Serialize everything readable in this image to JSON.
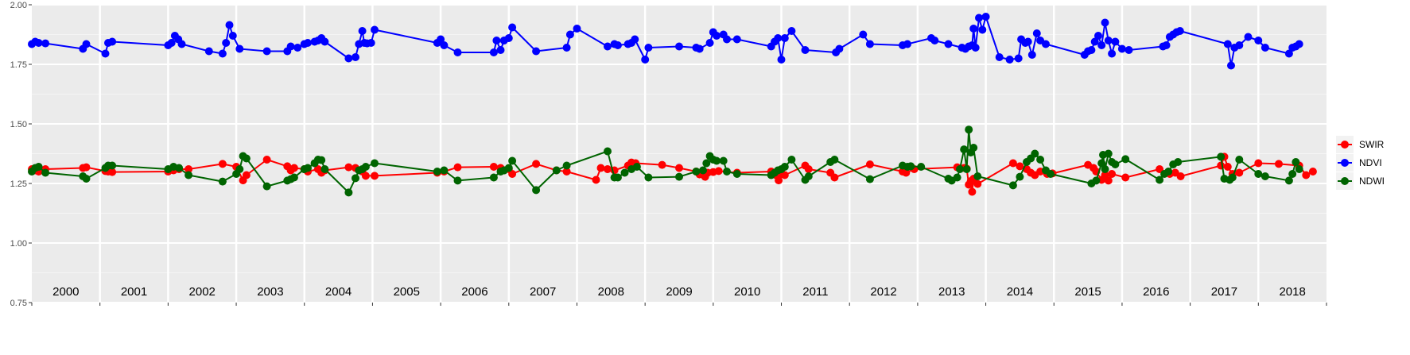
{
  "chart_data": {
    "type": "line",
    "title": "",
    "xlabel": "",
    "ylabel": "",
    "xlim": [
      2000.0,
      2019.0
    ],
    "ylim": [
      0.75,
      2.0
    ],
    "y_ticks": [
      "0.75",
      "1.00",
      "1.25",
      "1.50",
      "1.75",
      "2.00"
    ],
    "y_tick_values": [
      0.75,
      1.0,
      1.25,
      1.5,
      1.75,
      2.0
    ],
    "year_labels": [
      "2000",
      "2001",
      "2002",
      "2003",
      "2004",
      "2005",
      "2006",
      "2007",
      "2008",
      "2009",
      "2010",
      "2011",
      "2012",
      "2013",
      "2014",
      "2015",
      "2016",
      "2017",
      "2018"
    ],
    "grid": true,
    "legend_position": "right",
    "background_color": "#ebebeb",
    "series": [
      {
        "name": "SWIR",
        "color": "#ff0000",
        "x": [
          2000.0,
          2000.05,
          2000.1,
          2000.2,
          2000.75,
          2000.8,
          2001.08,
          2001.12,
          2001.18,
          2002.0,
          2002.08,
          2002.16,
          2002.3,
          2002.8,
          2003.0,
          2003.1,
          2003.15,
          2003.45,
          2003.75,
          2003.8,
          2003.85,
          2004.0,
          2004.05,
          2004.2,
          2004.25,
          2004.3,
          2004.65,
          2004.75,
          2004.85,
          2004.9,
          2005.03,
          2005.95,
          2006.05,
          2006.25,
          2006.78,
          2006.88,
          2006.93,
          2007.0,
          2007.05,
          2007.4,
          2007.7,
          2007.85,
          2008.28,
          2008.35,
          2008.45,
          2008.55,
          2008.75,
          2008.8,
          2008.86,
          2009.25,
          2009.5,
          2009.75,
          2009.8,
          2009.88,
          2009.92,
          2010.0,
          2010.08,
          2010.35,
          2010.85,
          2010.92,
          2010.96,
          2011.0,
          2011.05,
          2011.35,
          2011.4,
          2011.72,
          2011.78,
          2012.3,
          2012.78,
          2012.83,
          2012.95,
          2013.58,
          2013.68,
          2013.72,
          2013.75,
          2013.78,
          2013.8,
          2013.82,
          2013.88,
          2014.4,
          2014.5,
          2014.6,
          2014.66,
          2014.72,
          2014.8,
          2014.9,
          2014.98,
          2015.5,
          2015.58,
          2015.62,
          2015.7,
          2015.75,
          2015.8,
          2015.85,
          2016.05,
          2016.55,
          2016.7,
          2016.78,
          2016.86,
          2017.45,
          2017.5,
          2017.55,
          2017.62,
          2017.72,
          2018.0,
          2018.3,
          2018.6,
          2018.7,
          2018.8
        ],
        "y": [
          1.31,
          1.305,
          1.3,
          1.31,
          1.315,
          1.318,
          1.302,
          1.3,
          1.298,
          1.3,
          1.305,
          1.31,
          1.31,
          1.332,
          1.32,
          1.263,
          1.285,
          1.35,
          1.322,
          1.305,
          1.315,
          1.31,
          1.3,
          1.31,
          1.295,
          1.305,
          1.318,
          1.315,
          1.3,
          1.282,
          1.282,
          1.295,
          1.3,
          1.318,
          1.32,
          1.315,
          1.305,
          1.31,
          1.29,
          1.332,
          1.305,
          1.3,
          1.265,
          1.315,
          1.31,
          1.305,
          1.325,
          1.338,
          1.335,
          1.328,
          1.315,
          1.3,
          1.288,
          1.278,
          1.295,
          1.298,
          1.302,
          1.295,
          1.3,
          1.285,
          1.263,
          1.29,
          1.285,
          1.325,
          1.31,
          1.295,
          1.275,
          1.33,
          1.3,
          1.295,
          1.31,
          1.318,
          1.315,
          1.312,
          1.245,
          1.26,
          1.215,
          1.27,
          1.248,
          1.335,
          1.322,
          1.31,
          1.295,
          1.285,
          1.3,
          1.29,
          1.292,
          1.328,
          1.315,
          1.3,
          1.265,
          1.285,
          1.262,
          1.29,
          1.275,
          1.31,
          1.29,
          1.295,
          1.28,
          1.325,
          1.362,
          1.32,
          1.29,
          1.295,
          1.335,
          1.332,
          1.325,
          1.285,
          1.3
        ]
      },
      {
        "name": "NDVI",
        "color": "#0000ff",
        "x": [
          2000.0,
          2000.05,
          2000.1,
          2000.2,
          2000.75,
          2000.8,
          2001.08,
          2001.12,
          2001.18,
          2002.0,
          2002.05,
          2002.1,
          2002.15,
          2002.2,
          2002.6,
          2002.8,
          2002.85,
          2002.9,
          2002.95,
          2003.05,
          2003.45,
          2003.75,
          2003.8,
          2003.9,
          2004.0,
          2004.05,
          2004.15,
          2004.2,
          2004.25,
          2004.3,
          2004.65,
          2004.75,
          2004.8,
          2004.85,
          2004.88,
          2004.92,
          2004.98,
          2005.03,
          2005.95,
          2006.0,
          2006.05,
          2006.25,
          2006.78,
          2006.82,
          2006.88,
          2006.93,
          2007.0,
          2007.05,
          2007.4,
          2007.85,
          2007.9,
          2008.0,
          2008.45,
          2008.55,
          2008.6,
          2008.75,
          2008.8,
          2008.85,
          2009.0,
          2009.05,
          2009.5,
          2009.75,
          2009.8,
          2009.95,
          2010.0,
          2010.05,
          2010.15,
          2010.2,
          2010.35,
          2010.85,
          2010.9,
          2010.95,
          2011.0,
          2011.05,
          2011.15,
          2011.35,
          2011.8,
          2011.85,
          2012.2,
          2012.3,
          2012.78,
          2012.85,
          2013.2,
          2013.25,
          2013.45,
          2013.65,
          2013.7,
          2013.75,
          2013.8,
          2013.82,
          2013.85,
          2013.9,
          2013.95,
          2014.0,
          2014.2,
          2014.35,
          2014.48,
          2014.52,
          2014.58,
          2014.62,
          2014.68,
          2014.75,
          2014.8,
          2014.88,
          2015.45,
          2015.5,
          2015.55,
          2015.6,
          2015.65,
          2015.7,
          2015.75,
          2015.8,
          2015.85,
          2015.9,
          2016.0,
          2016.1,
          2016.6,
          2016.65,
          2016.7,
          2016.75,
          2016.8,
          2016.85,
          2017.55,
          2017.6,
          2017.65,
          2017.72,
          2017.85,
          2018.0,
          2018.1,
          2018.45,
          2018.5,
          2018.55,
          2018.6
        ],
        "y": [
          1.835,
          1.845,
          1.84,
          1.838,
          1.815,
          1.835,
          1.795,
          1.84,
          1.845,
          1.83,
          1.84,
          1.87,
          1.855,
          1.835,
          1.805,
          1.795,
          1.84,
          1.915,
          1.87,
          1.815,
          1.805,
          1.805,
          1.825,
          1.82,
          1.835,
          1.84,
          1.845,
          1.85,
          1.86,
          1.845,
          1.775,
          1.78,
          1.835,
          1.89,
          1.84,
          1.838,
          1.84,
          1.895,
          1.84,
          1.855,
          1.83,
          1.8,
          1.8,
          1.85,
          1.81,
          1.85,
          1.86,
          1.905,
          1.805,
          1.82,
          1.875,
          1.9,
          1.825,
          1.835,
          1.83,
          1.835,
          1.84,
          1.855,
          1.77,
          1.82,
          1.825,
          1.82,
          1.815,
          1.84,
          1.885,
          1.87,
          1.875,
          1.855,
          1.855,
          1.825,
          1.845,
          1.86,
          1.77,
          1.86,
          1.89,
          1.81,
          1.8,
          1.815,
          1.875,
          1.835,
          1.83,
          1.835,
          1.86,
          1.85,
          1.835,
          1.82,
          1.815,
          1.825,
          1.83,
          1.9,
          1.82,
          1.945,
          1.895,
          1.95,
          1.78,
          1.77,
          1.775,
          1.855,
          1.84,
          1.845,
          1.79,
          1.88,
          1.85,
          1.835,
          1.79,
          1.805,
          1.81,
          1.845,
          1.87,
          1.83,
          1.925,
          1.85,
          1.795,
          1.845,
          1.815,
          1.81,
          1.825,
          1.83,
          1.865,
          1.875,
          1.885,
          1.89,
          1.835,
          1.745,
          1.82,
          1.83,
          1.865,
          1.85,
          1.82,
          1.795,
          1.82,
          1.825,
          1.835
        ],
        "note_omitted": false
      },
      {
        "name": "NDWI",
        "color": "#006400",
        "x": [
          2000.0,
          2000.05,
          2000.1,
          2000.2,
          2000.75,
          2000.8,
          2001.08,
          2001.12,
          2001.18,
          2002.0,
          2002.08,
          2002.16,
          2002.3,
          2002.8,
          2003.0,
          2003.05,
          2003.1,
          2003.15,
          2003.45,
          2003.75,
          2003.8,
          2003.85,
          2004.0,
          2004.05,
          2004.15,
          2004.2,
          2004.25,
          2004.3,
          2004.65,
          2004.75,
          2004.8,
          2004.85,
          2004.9,
          2005.03,
          2005.95,
          2006.05,
          2006.25,
          2006.78,
          2006.88,
          2006.93,
          2007.0,
          2007.05,
          2007.4,
          2007.7,
          2007.85,
          2008.45,
          2008.55,
          2008.6,
          2008.7,
          2008.8,
          2008.88,
          2009.05,
          2009.5,
          2009.75,
          2009.85,
          2009.9,
          2009.95,
          2010.0,
          2010.05,
          2010.15,
          2010.2,
          2010.35,
          2010.85,
          2010.9,
          2010.95,
          2011.0,
          2011.05,
          2011.15,
          2011.35,
          2011.4,
          2011.72,
          2011.78,
          2012.3,
          2012.78,
          2012.85,
          2012.9,
          2013.05,
          2013.45,
          2013.5,
          2013.58,
          2013.62,
          2013.68,
          2013.72,
          2013.75,
          2013.78,
          2013.82,
          2013.88,
          2014.4,
          2014.5,
          2014.6,
          2014.66,
          2014.72,
          2014.8,
          2014.88,
          2014.95,
          2015.55,
          2015.62,
          2015.7,
          2015.72,
          2015.75,
          2015.8,
          2015.85,
          2015.9,
          2016.05,
          2016.55,
          2016.62,
          2016.68,
          2016.75,
          2016.82,
          2017.45,
          2017.5,
          2017.58,
          2017.62,
          2017.72,
          2018.0,
          2018.1,
          2018.45,
          2018.5,
          2018.55,
          2018.6
        ],
        "y": [
          1.3,
          1.315,
          1.32,
          1.295,
          1.28,
          1.27,
          1.315,
          1.325,
          1.325,
          1.31,
          1.32,
          1.315,
          1.285,
          1.258,
          1.29,
          1.31,
          1.365,
          1.355,
          1.238,
          1.262,
          1.268,
          1.275,
          1.31,
          1.315,
          1.335,
          1.35,
          1.348,
          1.31,
          1.212,
          1.272,
          1.305,
          1.31,
          1.32,
          1.335,
          1.3,
          1.305,
          1.262,
          1.275,
          1.3,
          1.305,
          1.315,
          1.345,
          1.222,
          1.305,
          1.325,
          1.385,
          1.275,
          1.275,
          1.295,
          1.31,
          1.32,
          1.275,
          1.278,
          1.3,
          1.305,
          1.335,
          1.365,
          1.35,
          1.345,
          1.345,
          1.3,
          1.29,
          1.285,
          1.295,
          1.305,
          1.31,
          1.32,
          1.35,
          1.265,
          1.28,
          1.34,
          1.35,
          1.268,
          1.325,
          1.32,
          1.322,
          1.32,
          1.27,
          1.262,
          1.275,
          1.31,
          1.393,
          1.31,
          1.476,
          1.38,
          1.4,
          1.28,
          1.242,
          1.278,
          1.34,
          1.355,
          1.375,
          1.35,
          1.305,
          1.29,
          1.25,
          1.262,
          1.335,
          1.37,
          1.31,
          1.375,
          1.34,
          1.33,
          1.352,
          1.265,
          1.29,
          1.3,
          1.33,
          1.34,
          1.362,
          1.27,
          1.265,
          1.275,
          1.35,
          1.29,
          1.28,
          1.262,
          1.29,
          1.34,
          1.31
        ]
      }
    ]
  }
}
